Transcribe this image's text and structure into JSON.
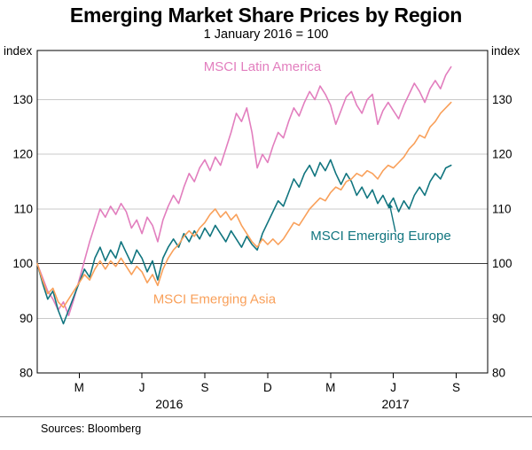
{
  "header": {
    "title": "Emerging Market Share Prices by Region",
    "subtitle": "1 January 2016 = 100"
  },
  "footer": {
    "sources": "Sources: Bloomberg"
  },
  "chart_data": {
    "type": "line",
    "title": "Emerging Market Share Prices by Region",
    "subtitle": "1 January 2016 = 100",
    "grid": "horizontal",
    "legend": "in-plot-labels",
    "y_axis": {
      "label": "index",
      "ticks": [
        80,
        90,
        100,
        110,
        120,
        130
      ],
      "range": [
        80,
        139
      ],
      "both_sides": true
    },
    "x_axis": {
      "range": [
        0,
        21.5
      ],
      "unit": "months-since-2016-01-01",
      "ticks": [
        2,
        5,
        8,
        11,
        14,
        17,
        20
      ],
      "tick_labels": [
        "M",
        "J",
        "S",
        "D",
        "M",
        "J",
        "S"
      ],
      "year_labels": [
        {
          "text": "2016",
          "x": 6.3
        },
        {
          "text": "2017",
          "x": 17.1
        }
      ]
    },
    "reference_line": 100,
    "x_start": 0,
    "x_step": 0.25,
    "series": [
      {
        "name": "MSCI Latin America",
        "color": "#e27ebe",
        "values": [
          100,
          97.5,
          95,
          93.5,
          91.5,
          93,
          90.5,
          93.5,
          97,
          100.5,
          104,
          107,
          110,
          108.5,
          110.5,
          109,
          111,
          109.5,
          106.5,
          108,
          105.5,
          108.5,
          107,
          104,
          108,
          110.5,
          112.5,
          111,
          114,
          116.5,
          115,
          117.5,
          119,
          117,
          119.5,
          118,
          121,
          124,
          127.5,
          126,
          128.5,
          124,
          117.5,
          120,
          118.5,
          121.5,
          124,
          123,
          126,
          128.5,
          127,
          129.5,
          131.5,
          130,
          132.5,
          131,
          129,
          125.5,
          128,
          130.5,
          131.5,
          129,
          127.5,
          130,
          131,
          125.5,
          128,
          129.5,
          128,
          126.5,
          129,
          131,
          133,
          131.5,
          129.5,
          132,
          133.5,
          132,
          134.5,
          136
        ]
      },
      {
        "name": "MSCI Emerging Europe",
        "color": "#11757f",
        "values": [
          100,
          96.5,
          93.5,
          95,
          91.5,
          89,
          91.5,
          94,
          96.5,
          99,
          97.5,
          101,
          103,
          100.5,
          102.5,
          101,
          104,
          102,
          100,
          102.5,
          101,
          98.5,
          100.5,
          97,
          101,
          103,
          104.5,
          103,
          105.5,
          104,
          106,
          104.5,
          106.5,
          105,
          107,
          105.5,
          104,
          106,
          104.5,
          103,
          105,
          103.5,
          102.5,
          105.5,
          107.5,
          109.5,
          111.5,
          110.5,
          113,
          115.5,
          114,
          116.5,
          118,
          116,
          118.5,
          117,
          119,
          116.5,
          114.5,
          116.5,
          115,
          112.5,
          114,
          112,
          113.5,
          111,
          112.5,
          110.5,
          112,
          109.5,
          111.5,
          110,
          112.5,
          114,
          112.5,
          115,
          116.5,
          115.5,
          117.5,
          118
        ]
      },
      {
        "name": "MSCI Emerging Asia",
        "color": "#f9a05a",
        "values": [
          100,
          97,
          94.5,
          95.5,
          93,
          92,
          93.5,
          95,
          96.5,
          98,
          97,
          99,
          100.5,
          99,
          100.5,
          99.5,
          101,
          99.5,
          98,
          99.5,
          98.5,
          96.5,
          98,
          96,
          99,
          101,
          102.5,
          103.5,
          105,
          106,
          105,
          106.5,
          107.5,
          109,
          110,
          108.5,
          109.5,
          108,
          109,
          107,
          105.5,
          104,
          103,
          104.5,
          103.5,
          104.5,
          103.5,
          104.5,
          106,
          107.5,
          107,
          108.5,
          110,
          111,
          112,
          111.5,
          113,
          114,
          113.5,
          115,
          115.5,
          116.5,
          116,
          117,
          116.5,
          115.5,
          117,
          118,
          117.5,
          118.5,
          119.5,
          121,
          122,
          123.5,
          123,
          125,
          126,
          127.5,
          128.5,
          129.5
        ]
      }
    ],
    "annotations": [
      {
        "text": "MSCI Latin America",
        "color": "#e27ebe",
        "x": 10.75,
        "y": 135.3
      },
      {
        "text": "MSCI Emerging Europe",
        "color": "#11757f",
        "x": 16.4,
        "y": 104.3,
        "arrow": {
          "x1": 17.1,
          "y1": 105.8,
          "x2": 16.8,
          "y2": 111.2
        }
      },
      {
        "text": "MSCI Emerging Asia",
        "color": "#f9a05a",
        "x": 8.46,
        "y": 92.7
      }
    ]
  }
}
